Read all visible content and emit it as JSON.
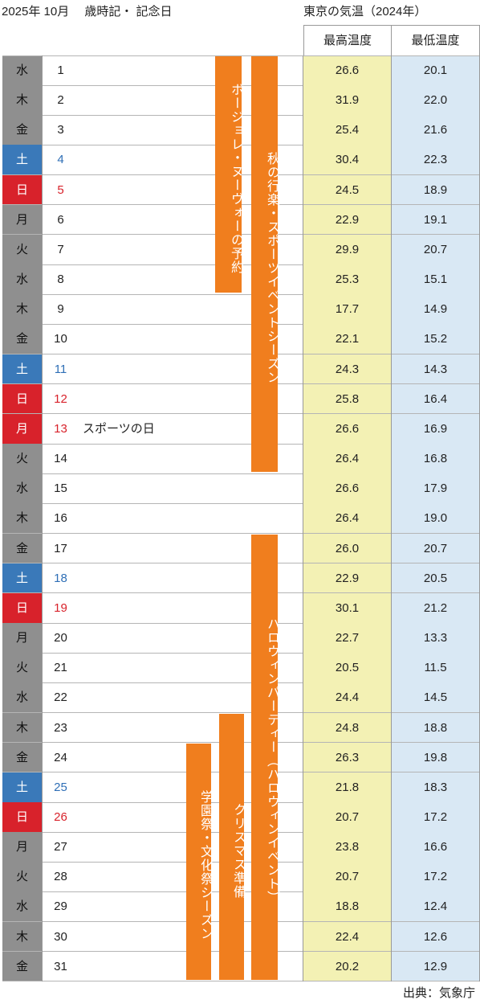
{
  "header": {
    "title_left": "2025年 10月　 歳時記・ 記念日",
    "title_right": "東京の気温（2024年）",
    "col_high": "最高温度",
    "col_low": "最低温度"
  },
  "rows": [
    {
      "dow": "水",
      "day": "1",
      "note": "",
      "high": "26.6",
      "low": "20.1",
      "type": "weekday"
    },
    {
      "dow": "木",
      "day": "2",
      "note": "",
      "high": "31.9",
      "low": "22.0",
      "type": "weekday"
    },
    {
      "dow": "金",
      "day": "3",
      "note": "",
      "high": "25.4",
      "low": "21.6",
      "type": "weekday"
    },
    {
      "dow": "土",
      "day": "4",
      "note": "",
      "high": "30.4",
      "low": "22.3",
      "type": "sat"
    },
    {
      "dow": "日",
      "day": "5",
      "note": "",
      "high": "24.5",
      "low": "18.9",
      "type": "sun"
    },
    {
      "dow": "月",
      "day": "6",
      "note": "",
      "high": "22.9",
      "low": "19.1",
      "type": "weekday"
    },
    {
      "dow": "火",
      "day": "7",
      "note": "",
      "high": "29.9",
      "low": "20.7",
      "type": "weekday"
    },
    {
      "dow": "水",
      "day": "8",
      "note": "",
      "high": "25.3",
      "low": "15.1",
      "type": "weekday"
    },
    {
      "dow": "木",
      "day": "9",
      "note": "",
      "high": "17.7",
      "low": "14.9",
      "type": "weekday"
    },
    {
      "dow": "金",
      "day": "10",
      "note": "",
      "high": "22.1",
      "low": "15.2",
      "type": "weekday"
    },
    {
      "dow": "土",
      "day": "11",
      "note": "",
      "high": "24.3",
      "low": "14.3",
      "type": "sat"
    },
    {
      "dow": "日",
      "day": "12",
      "note": "",
      "high": "25.8",
      "low": "16.4",
      "type": "sun"
    },
    {
      "dow": "月",
      "day": "13",
      "note": "スポーツの日",
      "high": "26.6",
      "low": "16.9",
      "type": "holiday"
    },
    {
      "dow": "火",
      "day": "14",
      "note": "",
      "high": "26.4",
      "low": "16.8",
      "type": "weekday"
    },
    {
      "dow": "水",
      "day": "15",
      "note": "",
      "high": "26.6",
      "low": "17.9",
      "type": "weekday"
    },
    {
      "dow": "木",
      "day": "16",
      "note": "",
      "high": "26.4",
      "low": "19.0",
      "type": "weekday"
    },
    {
      "dow": "金",
      "day": "17",
      "note": "",
      "high": "26.0",
      "low": "20.7",
      "type": "weekday"
    },
    {
      "dow": "土",
      "day": "18",
      "note": "",
      "high": "22.9",
      "low": "20.5",
      "type": "sat"
    },
    {
      "dow": "日",
      "day": "19",
      "note": "",
      "high": "30.1",
      "low": "21.2",
      "type": "sun"
    },
    {
      "dow": "月",
      "day": "20",
      "note": "",
      "high": "22.7",
      "low": "13.3",
      "type": "weekday"
    },
    {
      "dow": "火",
      "day": "21",
      "note": "",
      "high": "20.5",
      "low": "11.5",
      "type": "weekday"
    },
    {
      "dow": "水",
      "day": "22",
      "note": "",
      "high": "24.4",
      "low": "14.5",
      "type": "weekday"
    },
    {
      "dow": "木",
      "day": "23",
      "note": "",
      "high": "24.8",
      "low": "18.8",
      "type": "weekday"
    },
    {
      "dow": "金",
      "day": "24",
      "note": "",
      "high": "26.3",
      "low": "19.8",
      "type": "weekday"
    },
    {
      "dow": "土",
      "day": "25",
      "note": "",
      "high": "21.8",
      "low": "18.3",
      "type": "sat"
    },
    {
      "dow": "日",
      "day": "26",
      "note": "",
      "high": "20.7",
      "low": "17.2",
      "type": "sun"
    },
    {
      "dow": "月",
      "day": "27",
      "note": "",
      "high": "23.8",
      "low": "16.6",
      "type": "weekday"
    },
    {
      "dow": "火",
      "day": "28",
      "note": "",
      "high": "20.7",
      "low": "17.2",
      "type": "weekday"
    },
    {
      "dow": "水",
      "day": "29",
      "note": "",
      "high": "18.8",
      "low": "12.4",
      "type": "weekday"
    },
    {
      "dow": "木",
      "day": "30",
      "note": "",
      "high": "22.4",
      "low": "12.6",
      "type": "weekday"
    },
    {
      "dow": "金",
      "day": "31",
      "note": "",
      "high": "20.2",
      "low": "12.9",
      "type": "weekday"
    }
  ],
  "events": [
    {
      "label": "ボージョレ・ヌーヴォーの予約",
      "start_day": 1,
      "end_day": 8
    },
    {
      "label": "秋の行楽・スポーツイベントシーズン",
      "start_day": 1,
      "end_day": 14
    },
    {
      "label": "ハロウィンパーティー（ハロウィンイベント）",
      "start_day": 17,
      "end_day": 31
    },
    {
      "label": "クリスマス準備",
      "start_day": 23,
      "end_day": 31
    },
    {
      "label": "学園祭・文化祭シーズン",
      "start_day": 24,
      "end_day": 31
    }
  ],
  "source": "出典：気象庁",
  "colors": {
    "event_bar": "#f07e1e",
    "saturday": "#3a79b9",
    "sunday": "#d8222b",
    "high_bg": "#f3f1b4",
    "low_bg": "#d9e8f4"
  }
}
